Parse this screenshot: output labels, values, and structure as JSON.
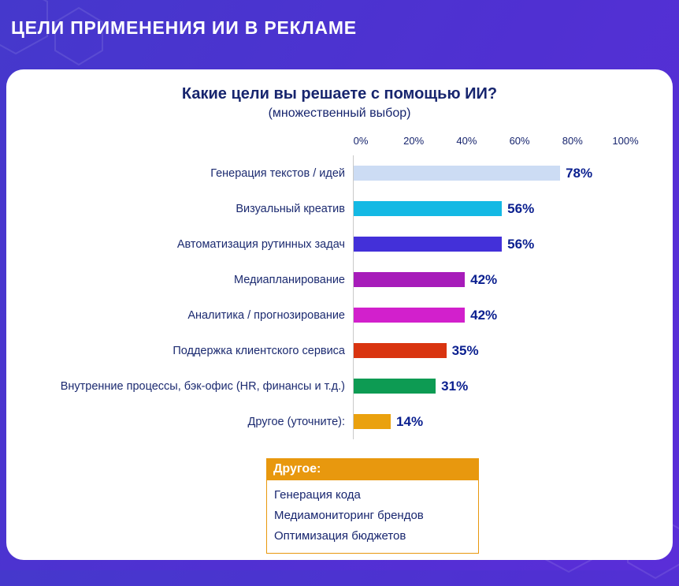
{
  "header": {
    "title": "ЦЕЛИ ПРИМЕНЕНИЯ ИИ В РЕКЛАМЕ"
  },
  "chart_data": {
    "type": "bar",
    "orientation": "horizontal",
    "title": "Какие цели вы решаете с помощью ИИ?",
    "subtitle": "(множественный выбор)",
    "categories": [
      "Генерация текстов / идей",
      "Визуальный креатив",
      "Автоматизация рутинных задач",
      "Медиапланирование",
      "Аналитика / прогнозирование",
      "Поддержка клиентского сервиса",
      "Внутренние процессы, бэк-офис (HR, финансы и т.д.)",
      "Другое (уточните):"
    ],
    "values": [
      78,
      56,
      56,
      42,
      42,
      35,
      31,
      14
    ],
    "value_labels": [
      "78%",
      "56%",
      "56%",
      "42%",
      "42%",
      "35%",
      "31%",
      "14%"
    ],
    "bar_colors": [
      "#ccdcf4",
      "#14b9e4",
      "#4330d9",
      "#a71cba",
      "#d220cc",
      "#d93410",
      "#0d9b53",
      "#eaa10e"
    ],
    "xlim": [
      0,
      100
    ],
    "x_ticks": [
      "0%",
      "20%",
      "40%",
      "60%",
      "80%",
      "100%"
    ],
    "grid": "axis-line-only",
    "legend": "none"
  },
  "other_box": {
    "title": "Другое:",
    "items": [
      "Генерация кода",
      "Медиамониторинг брендов",
      "Оптимизация бюджетов"
    ]
  },
  "colors": {
    "background_accent": "#4f33d0",
    "card_background": "#ffffff",
    "title_text": "#17256e",
    "value_text": "#0a1f8f",
    "axis_line": "#c9c9c9",
    "other_header_bg": "#e8980e"
  }
}
